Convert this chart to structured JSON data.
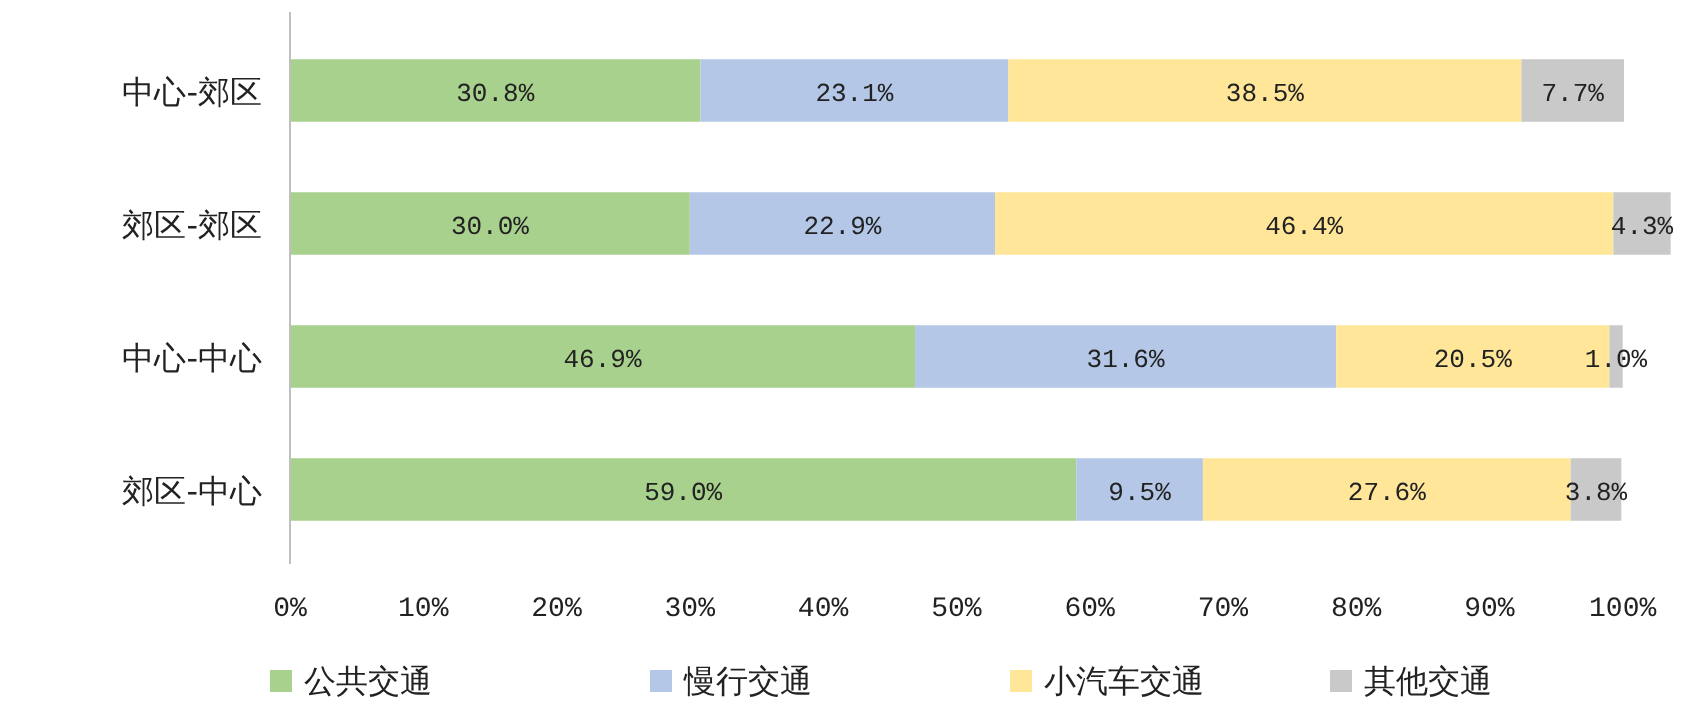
{
  "chart_data": {
    "type": "bar",
    "orientation": "horizontal",
    "stacked": true,
    "legend": "bottom",
    "categories": [
      "中心-郊区",
      "郊区-郊区",
      "中心-中心",
      "郊区-中心"
    ],
    "series": [
      {
        "name": "公共交通",
        "color": "#a9d18e",
        "values": [
          30.8,
          30.0,
          46.9,
          59.0
        ],
        "value_labels": [
          "30.8%",
          "30.0%",
          "46.9%",
          "59.0%"
        ]
      },
      {
        "name": "慢行交通",
        "color": "#b4c7e7",
        "values": [
          23.1,
          22.9,
          31.6,
          9.5
        ],
        "value_labels": [
          "23.1%",
          "22.9%",
          "31.6%",
          "9.5%"
        ]
      },
      {
        "name": "小汽车交通",
        "color": "#ffe699",
        "values": [
          38.5,
          46.4,
          20.5,
          27.6
        ],
        "value_labels": [
          "38.5%",
          "46.4%",
          "20.5%",
          "27.6%"
        ]
      },
      {
        "name": "其他交通",
        "color": "#c9c9c9",
        "values": [
          7.7,
          4.3,
          1.0,
          3.8
        ],
        "value_labels": [
          "7.7%",
          "4.3%",
          "1.0%",
          "3.8%"
        ]
      }
    ],
    "xlim": [
      0,
      104
    ],
    "xticks": [
      {
        "value": 0,
        "label": "0%"
      },
      {
        "value": 10,
        "label": "10%"
      },
      {
        "value": 20,
        "label": "20%"
      },
      {
        "value": 30,
        "label": "30%"
      },
      {
        "value": 40,
        "label": "40%"
      },
      {
        "value": 50,
        "label": "50%"
      },
      {
        "value": 60,
        "label": "60%"
      },
      {
        "value": 70,
        "label": "70%"
      },
      {
        "value": 80,
        "label": "80%"
      },
      {
        "value": 90,
        "label": "90%"
      },
      {
        "value": 100,
        "label": "100%"
      }
    ]
  }
}
